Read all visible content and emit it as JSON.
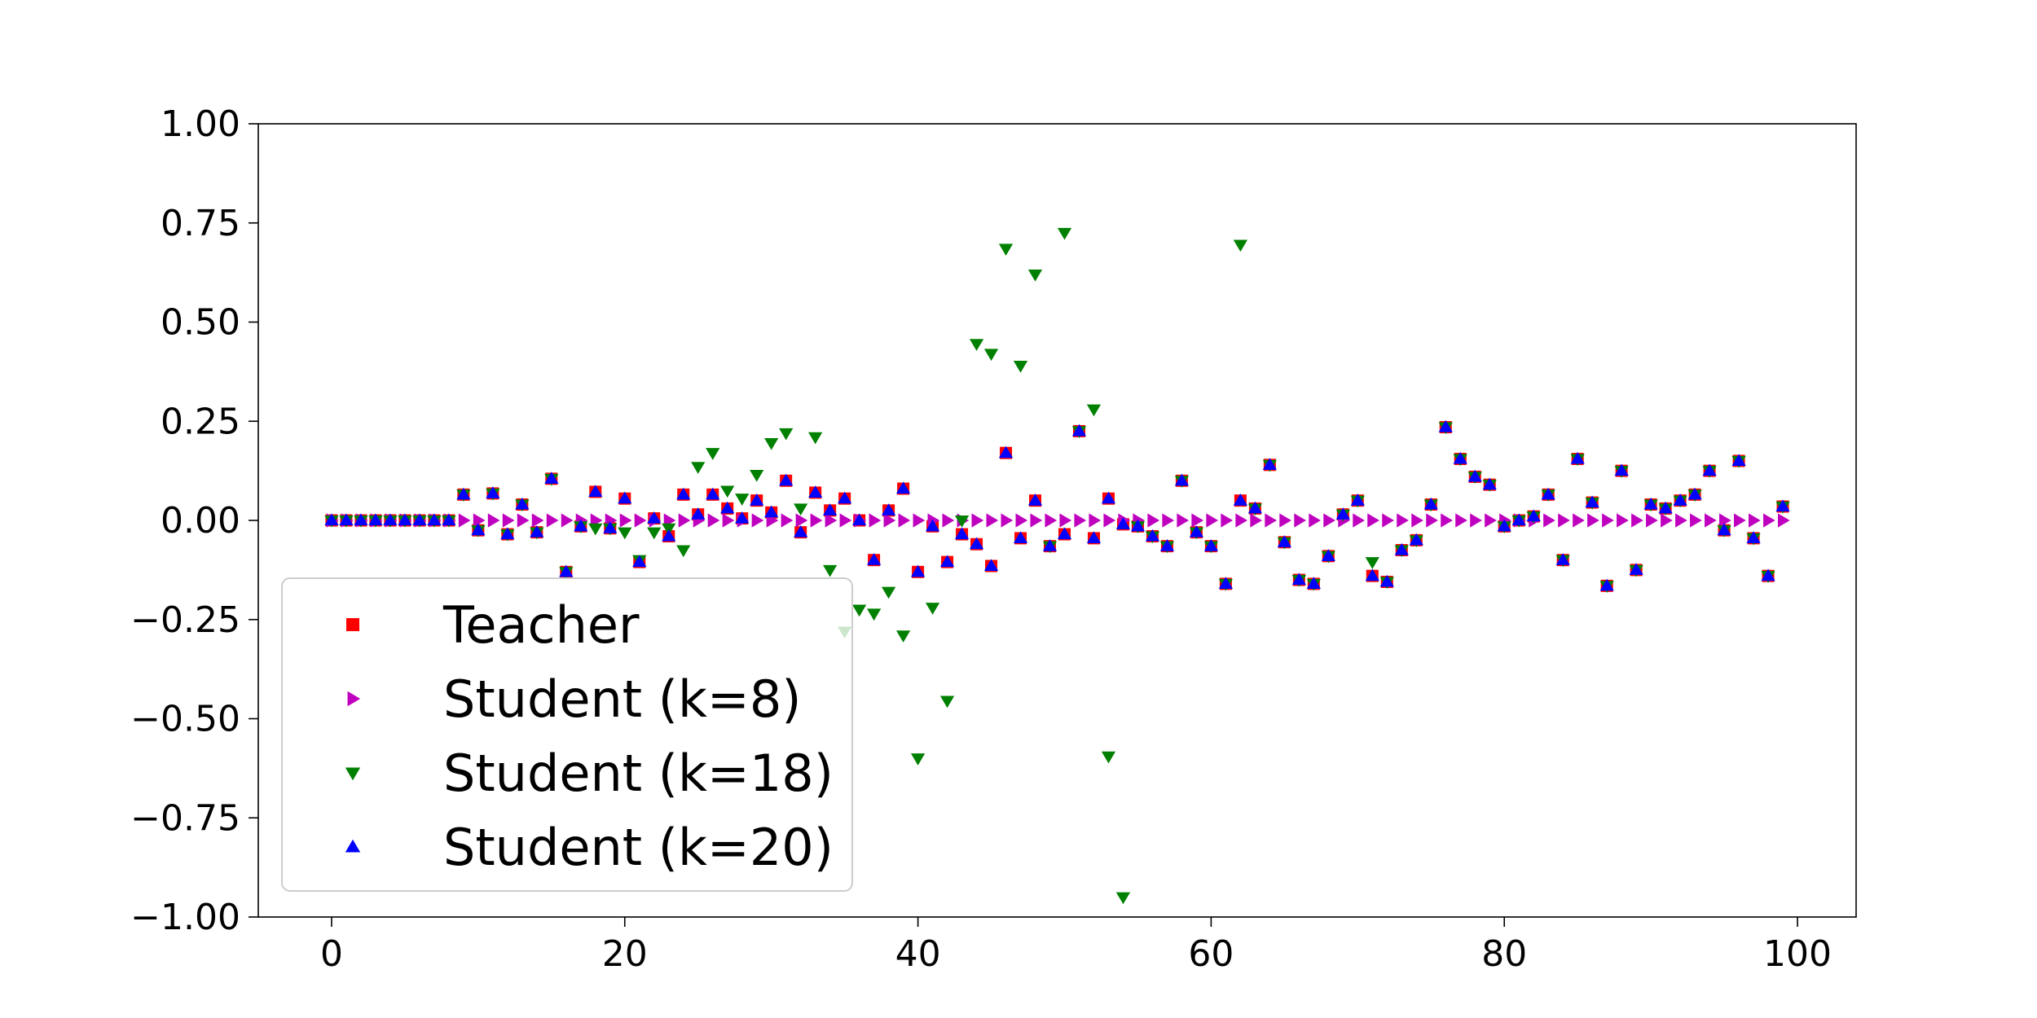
{
  "chart_data": {
    "type": "scatter",
    "title": "",
    "xlabel": "",
    "ylabel": "",
    "xlim": [
      -5,
      104
    ],
    "ylim": [
      -1.0,
      1.0
    ],
    "x_ticks": [
      0,
      20,
      40,
      60,
      80,
      100
    ],
    "x_tick_labels": [
      "0",
      "20",
      "40",
      "60",
      "80",
      "100"
    ],
    "y_ticks": [
      1.0,
      0.75,
      0.5,
      0.25,
      0.0,
      -0.25,
      -0.5,
      -0.75,
      -1.0
    ],
    "y_tick_labels": [
      "1.00",
      "0.75",
      "0.50",
      "0.25",
      "0.00",
      "−0.25",
      "−0.50",
      "−0.75",
      "−1.00"
    ],
    "grid": false,
    "legend_position": "lower-left",
    "x": [
      0,
      1,
      2,
      3,
      4,
      5,
      6,
      7,
      8,
      9,
      10,
      11,
      12,
      13,
      14,
      15,
      16,
      17,
      18,
      19,
      20,
      21,
      22,
      23,
      24,
      25,
      26,
      27,
      28,
      29,
      30,
      31,
      32,
      33,
      34,
      35,
      36,
      37,
      38,
      39,
      40,
      41,
      42,
      43,
      44,
      45,
      46,
      47,
      48,
      49,
      50,
      51,
      52,
      53,
      54,
      55,
      56,
      57,
      58,
      59,
      60,
      61,
      62,
      63,
      64,
      65,
      66,
      67,
      68,
      69,
      70,
      71,
      72,
      73,
      74,
      75,
      76,
      77,
      78,
      79,
      80,
      81,
      82,
      83,
      84,
      85,
      86,
      87,
      88,
      89,
      90,
      91,
      92,
      93,
      94,
      95,
      96,
      97,
      98,
      99
    ],
    "series": [
      {
        "name": "Teacher",
        "marker": "square",
        "color": "#ff0000",
        "values": [
          0,
          0,
          0,
          0,
          0,
          0,
          0,
          0,
          0,
          0.065,
          -0.025,
          0.068,
          -0.035,
          0.04,
          -0.03,
          0.105,
          -0.13,
          -0.015,
          0.072,
          -0.02,
          0.055,
          -0.105,
          0.005,
          -0.04,
          0.065,
          0.015,
          0.065,
          0.03,
          0.005,
          0.05,
          0.02,
          0.1,
          -0.03,
          0.07,
          0.025,
          0.055,
          0,
          -0.1,
          0.025,
          0.08,
          -0.13,
          -0.015,
          -0.105,
          -0.035,
          -0.06,
          -0.115,
          0.17,
          -0.045,
          0.05,
          -0.065,
          -0.035,
          0.225,
          -0.045,
          0.055,
          -0.01,
          -0.015,
          -0.04,
          -0.065,
          0.1,
          -0.03,
          -0.065,
          -0.16,
          0.05,
          0.03,
          0.14,
          -0.055,
          -0.15,
          -0.16,
          -0.09,
          0.015,
          0.05,
          -0.14,
          -0.155,
          -0.075,
          -0.05,
          0.04,
          0.235,
          0.155,
          0.11,
          0.09,
          -0.015,
          0,
          0.01,
          0.065,
          -0.1,
          0.155,
          0.045,
          -0.165,
          0.125,
          -0.125,
          0.04,
          0.03,
          0.05,
          0.065,
          0.125,
          -0.025,
          0.15,
          -0.045,
          -0.14,
          0.035
        ]
      },
      {
        "name": "Student (k=8)",
        "marker": "triangle-right",
        "color": "#bf00bf",
        "values": [
          0,
          0,
          0,
          0,
          0,
          0,
          0,
          0,
          0,
          0,
          0,
          0,
          0,
          0,
          0,
          0,
          0,
          0,
          0,
          0,
          0,
          0,
          0,
          0,
          0,
          0,
          0,
          0,
          0,
          0,
          0,
          0,
          0,
          0,
          0,
          0,
          0,
          0,
          0,
          0,
          0,
          0,
          0,
          0,
          0,
          0,
          0,
          0,
          0,
          0,
          0,
          0,
          0,
          0,
          0,
          0,
          0,
          0,
          0,
          0,
          0,
          0,
          0,
          0,
          0,
          0,
          0,
          0,
          0,
          0,
          0,
          0,
          0,
          0,
          0,
          0,
          0,
          0,
          0,
          0,
          0,
          0,
          0,
          0,
          0,
          0,
          0,
          0,
          0,
          0,
          0,
          0,
          0,
          0,
          0,
          0,
          0,
          0,
          0,
          0
        ]
      },
      {
        "name": "Student (k=18)",
        "marker": "triangle-down",
        "color": "#008000",
        "values": [
          0,
          0,
          0,
          0,
          0,
          0,
          0,
          0,
          0,
          0.065,
          -0.025,
          0.068,
          -0.035,
          0.04,
          -0.03,
          0.105,
          -0.13,
          -0.015,
          -0.02,
          -0.02,
          -0.03,
          -0.1,
          -0.03,
          -0.02,
          -0.075,
          0.135,
          0.17,
          0.075,
          0.055,
          0.115,
          0.195,
          0.22,
          0.03,
          0.21,
          -0.125,
          -0.28,
          -0.225,
          -0.235,
          -0.18,
          -0.29,
          -0.6,
          -0.22,
          -0.455,
          0,
          0.445,
          0.42,
          0.685,
          0.39,
          0.62,
          -0.065,
          0.725,
          0.225,
          0.28,
          -0.595,
          -0.95,
          -0.015,
          -0.04,
          -0.065,
          0.1,
          -0.03,
          -0.065,
          -0.16,
          0.695,
          0.03,
          0.14,
          -0.055,
          -0.15,
          -0.16,
          -0.09,
          0.015,
          0.05,
          -0.105,
          -0.155,
          -0.075,
          -0.05,
          0.04,
          0.235,
          0.155,
          0.11,
          0.09,
          -0.015,
          0,
          0.01,
          0.065,
          -0.1,
          0.155,
          0.045,
          -0.165,
          0.125,
          -0.125,
          0.04,
          0.03,
          0.05,
          0.065,
          0.125,
          -0.025,
          0.15,
          -0.045,
          -0.14,
          0.035
        ]
      },
      {
        "name": "Student (k=20)",
        "marker": "triangle-up",
        "color": "#0000ff",
        "values": [
          0,
          0,
          0,
          0,
          0,
          0,
          0,
          0,
          0,
          0.065,
          -0.025,
          0.068,
          -0.035,
          0.04,
          -0.03,
          0.105,
          -0.13,
          -0.015,
          0.072,
          -0.02,
          0.055,
          -0.105,
          0.005,
          -0.04,
          0.065,
          0.015,
          0.065,
          0.03,
          0.005,
          0.05,
          0.02,
          0.1,
          -0.03,
          0.07,
          0.025,
          0.055,
          0,
          -0.1,
          0.025,
          0.08,
          -0.13,
          -0.015,
          -0.105,
          -0.035,
          -0.06,
          -0.115,
          0.17,
          -0.045,
          0.05,
          -0.065,
          -0.035,
          0.225,
          -0.045,
          0.055,
          -0.01,
          -0.015,
          -0.04,
          -0.065,
          0.1,
          -0.03,
          -0.065,
          -0.16,
          0.05,
          0.03,
          0.14,
          -0.055,
          -0.15,
          -0.16,
          -0.09,
          0.015,
          0.05,
          -0.14,
          -0.155,
          -0.075,
          -0.05,
          0.04,
          0.235,
          0.155,
          0.11,
          0.09,
          -0.015,
          0,
          0.01,
          0.065,
          -0.1,
          0.155,
          0.045,
          -0.165,
          0.125,
          -0.125,
          0.04,
          0.03,
          0.05,
          0.065,
          0.125,
          -0.025,
          0.15,
          -0.045,
          -0.14,
          0.035
        ]
      }
    ]
  }
}
